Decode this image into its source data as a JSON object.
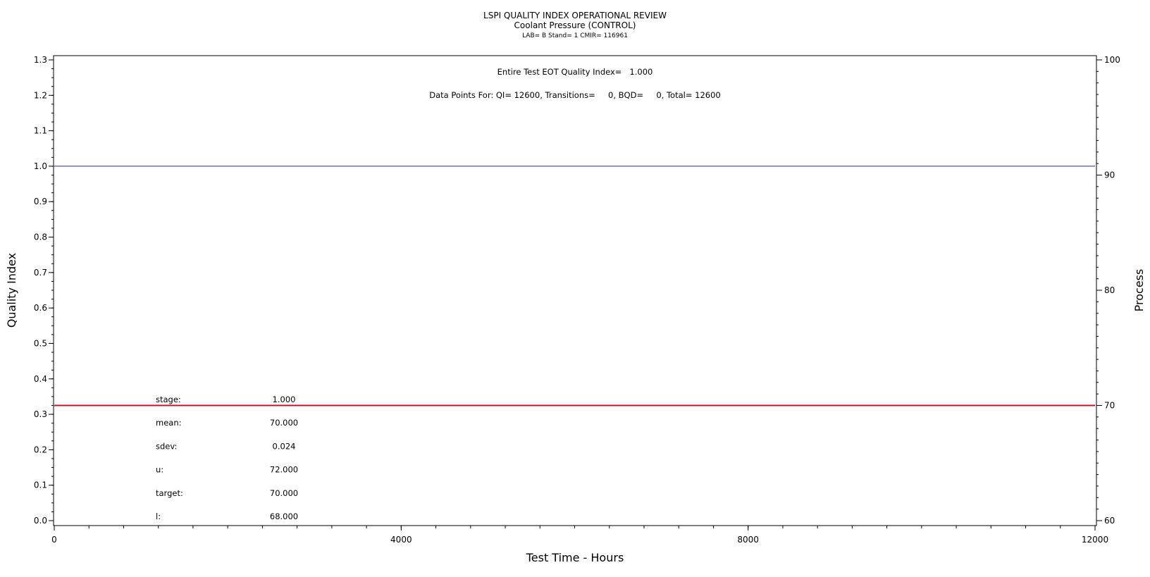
{
  "chart_data": {
    "type": "line",
    "title": "LSPI QUALITY INDEX OPERATIONAL REVIEW",
    "subtitle": "Coolant Pressure (CONTROL)",
    "subtitle2": "LAB= B Stand= 1 CMIR= 116961",
    "xlabel": "Test Time - Hours",
    "ylabel": "Quality Index",
    "y2label": "Process",
    "xlim": [
      0,
      12000
    ],
    "ylim": [
      0,
      1.3
    ],
    "y2lim": [
      60,
      100
    ],
    "x_ticks": [
      0,
      4000,
      8000,
      12000
    ],
    "x_tick_labels": [
      "0",
      "4000",
      "8000",
      "12000"
    ],
    "y_ticks": [
      0.0,
      0.1,
      0.2,
      0.3,
      0.4,
      0.5,
      0.6,
      0.7,
      0.8,
      0.9,
      1.0,
      1.1,
      1.2,
      1.3
    ],
    "y_tick_labels": [
      "0.0",
      "0.1",
      "0.2",
      "0.3",
      "0.4",
      "0.5",
      "0.6",
      "0.7",
      "0.8",
      "0.9",
      "1.0",
      "1.1",
      "1.2",
      "1.3"
    ],
    "y2_ticks": [
      60,
      70,
      80,
      90,
      100
    ],
    "y2_tick_labels": [
      "60",
      "70",
      "80",
      "90",
      "100"
    ],
    "grid": false,
    "series": [
      {
        "axis": "left",
        "color": "#1f2a8a",
        "x": [
          0,
          12000
        ],
        "y": [
          1.0,
          1.0
        ]
      },
      {
        "axis": "right",
        "color": "#c0142a",
        "x": [
          0,
          12000
        ],
        "y": [
          70.0,
          70.0
        ]
      }
    ],
    "annotations": {
      "quality_index": "Entire Test EOT Quality Index=   1.000",
      "data_points": "Data Points For: QI= 12600, Transitions=     0, BQD=     0, Total= 12600"
    },
    "stats": [
      {
        "label": "stage:",
        "value": "1.000"
      },
      {
        "label": "mean:",
        "value": "70.000"
      },
      {
        "label": "sdev:",
        "value": "0.024"
      },
      {
        "label": "u:",
        "value": "72.000"
      },
      {
        "label": "target:",
        "value": "70.000"
      },
      {
        "label": "l:",
        "value": "68.000"
      }
    ]
  }
}
